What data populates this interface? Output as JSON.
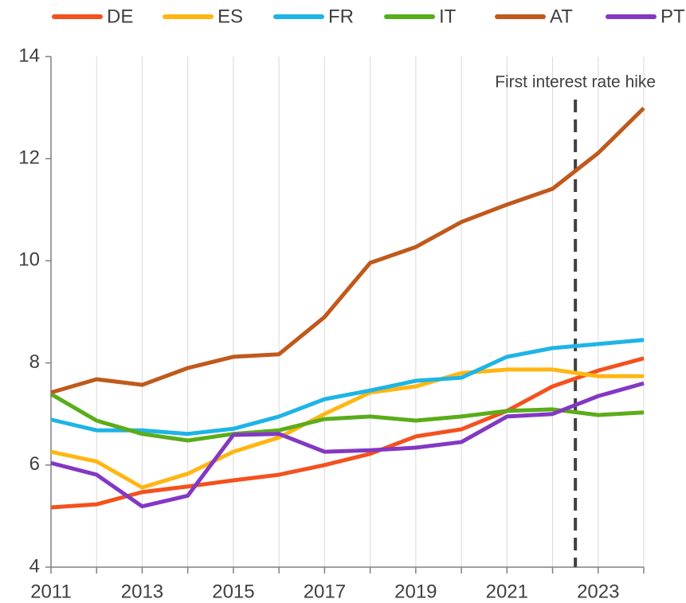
{
  "chart_data": {
    "type": "line",
    "x": [
      2011,
      2012,
      2013,
      2014,
      2015,
      2016,
      2017,
      2018,
      2019,
      2020,
      2021,
      2022,
      2023,
      2024
    ],
    "series": [
      {
        "name": "DE",
        "color": "#f4511e",
        "values": [
          5.17,
          5.23,
          5.47,
          5.58,
          5.7,
          5.81,
          6.0,
          6.22,
          6.56,
          6.7,
          7.06,
          7.54,
          7.85,
          8.09
        ]
      },
      {
        "name": "ES",
        "color": "#ffb612",
        "values": [
          6.26,
          6.07,
          5.56,
          5.83,
          6.26,
          6.54,
          7.0,
          7.42,
          7.54,
          7.8,
          7.87,
          7.87,
          7.74,
          7.74
        ]
      },
      {
        "name": "FR",
        "color": "#1eb4e6",
        "values": [
          6.89,
          6.68,
          6.68,
          6.61,
          6.71,
          6.95,
          7.29,
          7.46,
          7.65,
          7.71,
          8.12,
          8.29,
          8.37,
          8.45
        ]
      },
      {
        "name": "IT",
        "color": "#5aad1a",
        "values": [
          7.39,
          6.87,
          6.61,
          6.48,
          6.61,
          6.68,
          6.9,
          6.95,
          6.87,
          6.95,
          7.06,
          7.09,
          6.98,
          7.03
        ]
      },
      {
        "name": "AT",
        "color": "#c0591b",
        "values": [
          7.42,
          7.68,
          7.57,
          7.9,
          8.12,
          8.17,
          8.9,
          9.96,
          10.27,
          10.76,
          11.1,
          11.41,
          12.11,
          12.99
        ]
      },
      {
        "name": "PT",
        "color": "#8338c4",
        "values": [
          6.04,
          5.81,
          5.19,
          5.4,
          6.59,
          6.61,
          6.26,
          6.29,
          6.34,
          6.45,
          6.95,
          7.0,
          7.35,
          7.6
        ]
      }
    ],
    "xlim": [
      2011,
      2024
    ],
    "xticks": [
      2011,
      2013,
      2015,
      2017,
      2019,
      2021,
      2023
    ],
    "x_minor_ticks": [
      2012,
      2014,
      2016,
      2018,
      2020,
      2022,
      2024
    ],
    "ylim": [
      4,
      14
    ],
    "yticks": [
      4,
      6,
      8,
      10,
      12,
      14
    ],
    "grid": true,
    "legend": "top",
    "annotation": {
      "text": "First interest rate hike",
      "x": 2022.5
    }
  }
}
